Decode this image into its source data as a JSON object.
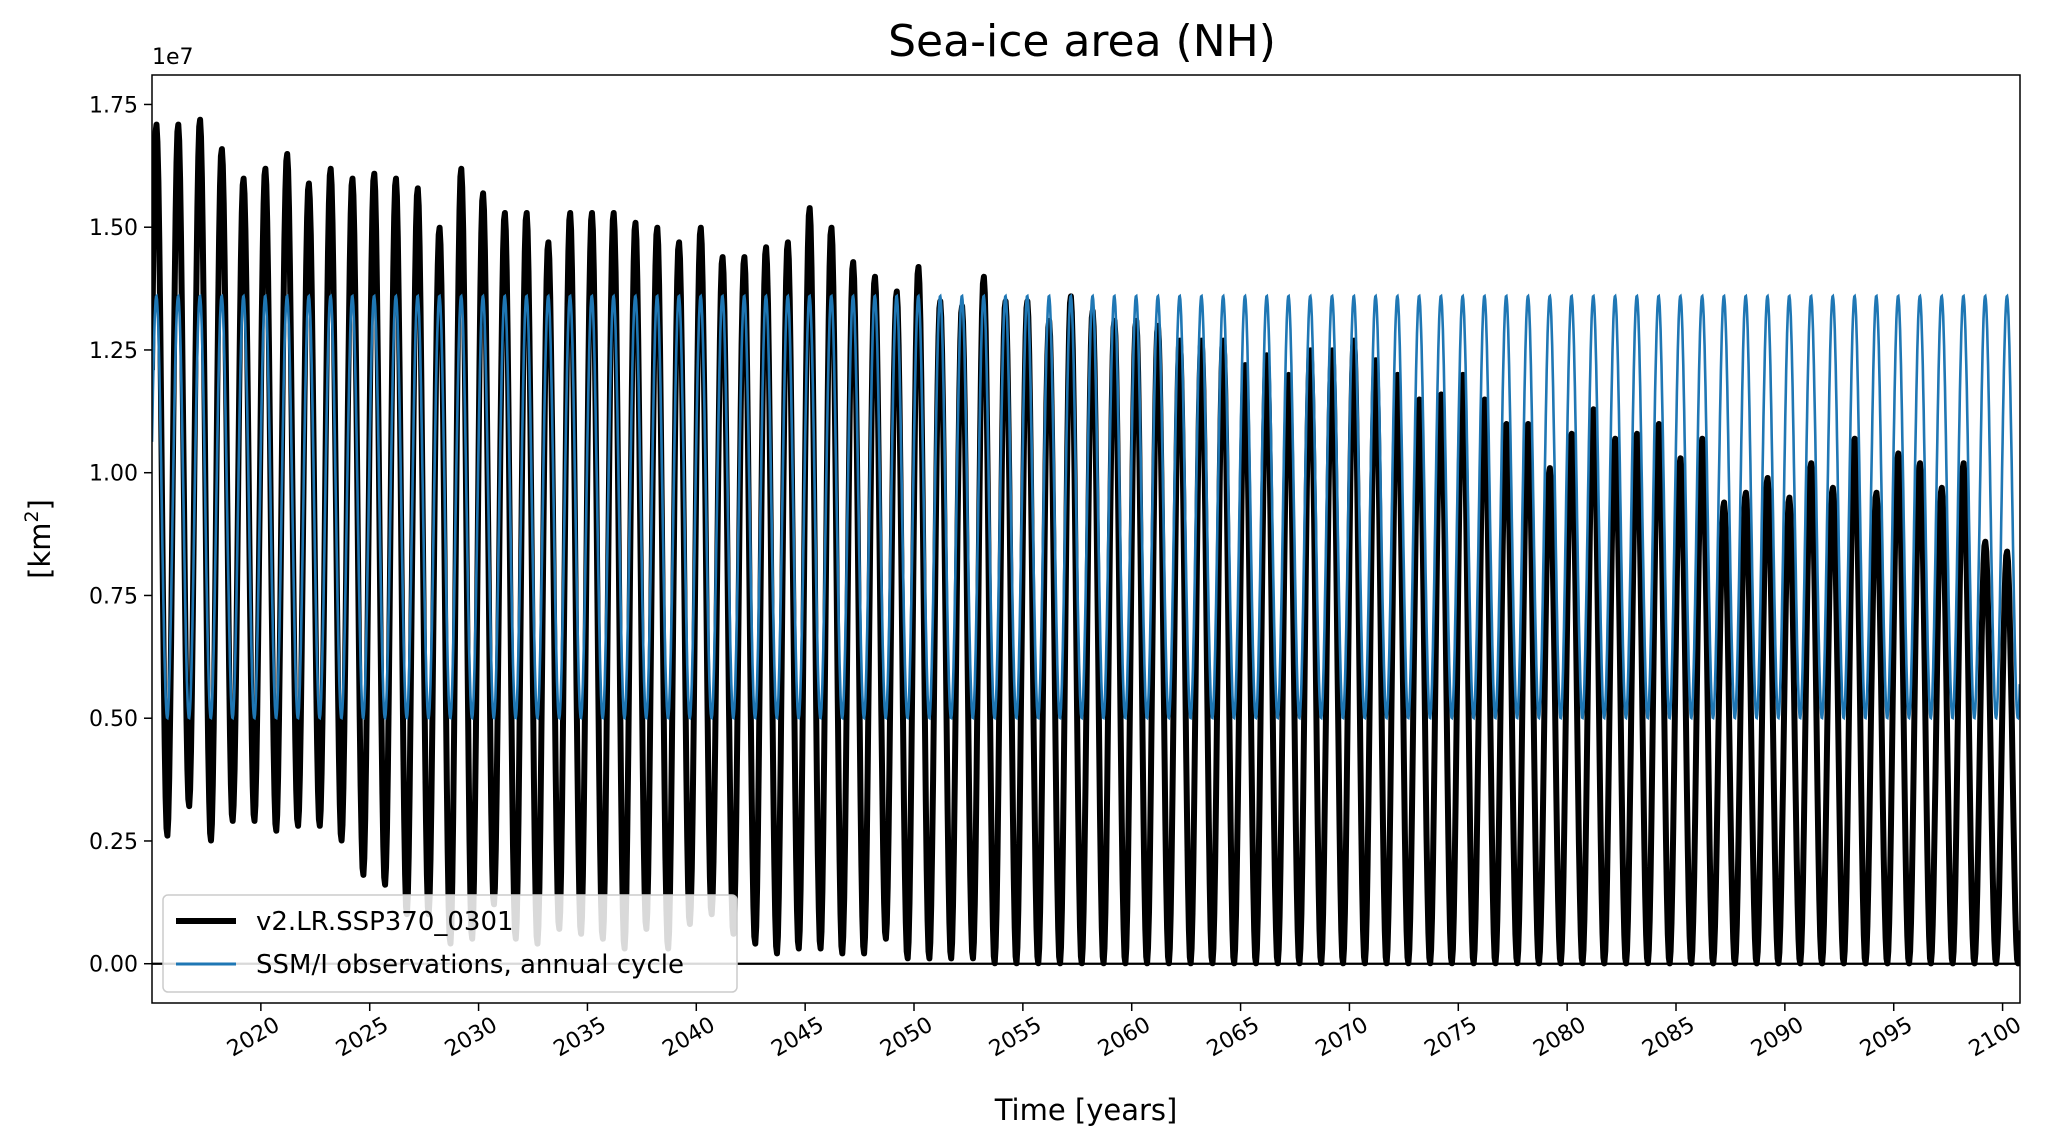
{
  "chart_data": {
    "type": "line",
    "title": "Sea-ice area (NH)",
    "xlabel": "Time [years]",
    "ylabel": "[km",
    "ylabel_sup": "2",
    "ylabel_close": "]",
    "y_scale_label": "1e7",
    "xlim": [
      2015,
      2100.8
    ],
    "ylim": [
      -0.08,
      1.81
    ],
    "y_unit_multiplier": 10000000,
    "x_ticks": [
      2020,
      2025,
      2030,
      2035,
      2040,
      2045,
      2050,
      2055,
      2060,
      2065,
      2070,
      2075,
      2080,
      2085,
      2090,
      2095,
      2100
    ],
    "x_tick_labels": [
      "2020",
      "2025",
      "2030",
      "2035",
      "2040",
      "2045",
      "2050",
      "2055",
      "2060",
      "2065",
      "2070",
      "2075",
      "2080",
      "2085",
      "2090",
      "2095",
      "2100"
    ],
    "y_ticks": [
      0.0,
      0.25,
      0.5,
      0.75,
      1.0,
      1.25,
      1.5,
      1.75
    ],
    "y_tick_labels": [
      "0.00",
      "0.25",
      "0.50",
      "0.75",
      "1.00",
      "1.25",
      "1.50",
      "1.75"
    ],
    "series": [
      {
        "name": "v2.LR.SSP370_0301",
        "color": "#000000",
        "description": "Annual cycle; values per year in units of 1e7 km2",
        "years": [
          2015,
          2016,
          2017,
          2018,
          2019,
          2020,
          2021,
          2022,
          2023,
          2024,
          2025,
          2026,
          2027,
          2028,
          2029,
          2030,
          2031,
          2032,
          2033,
          2034,
          2035,
          2036,
          2037,
          2038,
          2039,
          2040,
          2041,
          2042,
          2043,
          2044,
          2045,
          2046,
          2047,
          2048,
          2049,
          2050,
          2051,
          2052,
          2053,
          2054,
          2055,
          2056,
          2057,
          2058,
          2059,
          2060,
          2061,
          2062,
          2063,
          2064,
          2065,
          2066,
          2067,
          2068,
          2069,
          2070,
          2071,
          2072,
          2073,
          2074,
          2075,
          2076,
          2077,
          2078,
          2079,
          2080,
          2081,
          2082,
          2083,
          2084,
          2085,
          2086,
          2087,
          2088,
          2089,
          2090,
          2091,
          2092,
          2093,
          2094,
          2095,
          2096,
          2097,
          2098,
          2099,
          2100
        ],
        "max": [
          1.71,
          1.71,
          1.72,
          1.66,
          1.6,
          1.62,
          1.65,
          1.59,
          1.62,
          1.6,
          1.61,
          1.6,
          1.58,
          1.5,
          1.62,
          1.57,
          1.53,
          1.53,
          1.47,
          1.53,
          1.53,
          1.53,
          1.51,
          1.5,
          1.47,
          1.5,
          1.44,
          1.44,
          1.46,
          1.47,
          1.54,
          1.5,
          1.43,
          1.4,
          1.37,
          1.42,
          1.35,
          1.34,
          1.4,
          1.35,
          1.35,
          1.31,
          1.36,
          1.33,
          1.31,
          1.31,
          1.3,
          1.27,
          1.27,
          1.27,
          1.22,
          1.24,
          1.2,
          1.25,
          1.25,
          1.27,
          1.23,
          1.2,
          1.15,
          1.16,
          1.2,
          1.15,
          1.1,
          1.1,
          1.01,
          1.08,
          1.13,
          1.07,
          1.08,
          1.1,
          1.03,
          1.07,
          0.94,
          0.96,
          0.99,
          0.95,
          1.02,
          0.97,
          1.07,
          0.96,
          1.04,
          1.02,
          0.97,
          1.02,
          0.86,
          0.84
        ],
        "min": [
          0.26,
          0.32,
          0.25,
          0.29,
          0.29,
          0.27,
          0.28,
          0.28,
          0.25,
          0.18,
          0.16,
          0.1,
          0.1,
          0.04,
          0.05,
          0.12,
          0.05,
          0.04,
          0.07,
          0.06,
          0.05,
          0.03,
          0.07,
          0.03,
          0.08,
          0.1,
          0.06,
          0.04,
          0.02,
          0.03,
          0.03,
          0.02,
          0.02,
          0.05,
          0.01,
          0.01,
          0.01,
          0.01,
          0.0,
          0.0,
          0.0,
          0.0,
          0.0,
          0.0,
          0.0,
          0.0,
          0.0,
          0.0,
          0.0,
          0.0,
          0.0,
          0.0,
          0.0,
          0.0,
          0.0,
          0.0,
          0.0,
          0.0,
          0.0,
          0.0,
          0.0,
          0.0,
          0.0,
          0.0,
          0.0,
          0.0,
          0.0,
          0.0,
          0.0,
          0.0,
          0.0,
          0.0,
          0.0,
          0.0,
          0.0,
          0.0,
          0.0,
          0.0,
          0.0,
          0.0,
          0.0,
          0.0,
          0.0,
          0.0,
          0.0,
          0.0
        ]
      },
      {
        "name": "SSM/I observations, annual cycle",
        "color": "#1f77b4",
        "description": "Repeating climatological annual cycle",
        "cycle_max": 1.36,
        "cycle_min": 0.5
      }
    ],
    "legend": {
      "location": "lower-left",
      "entries": [
        "v2.LR.SSP370_0301",
        "SSM/I observations, annual cycle"
      ]
    }
  }
}
